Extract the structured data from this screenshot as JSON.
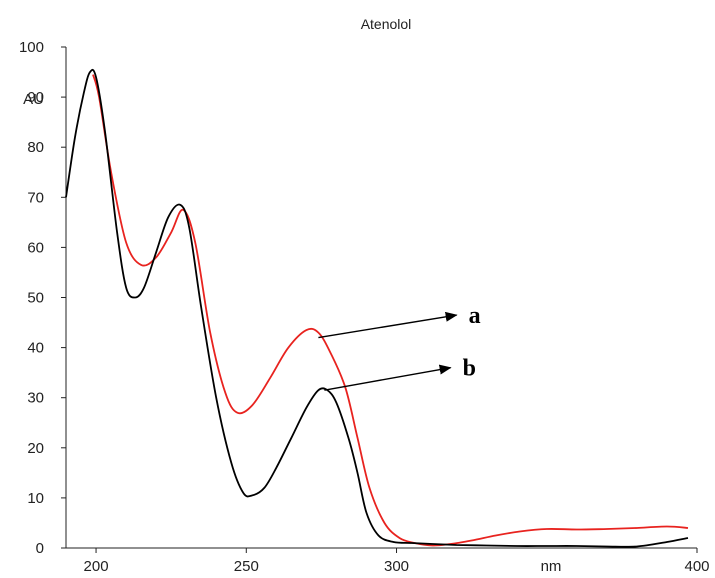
{
  "chart_data": {
    "type": "line",
    "title": "Atenolol",
    "xlabel": "nm",
    "ylabel": "AU",
    "xlim": [
      190,
      400
    ],
    "ylim": [
      0,
      100
    ],
    "x_ticks": [
      "200",
      "250",
      "300",
      "400"
    ],
    "y_ticks": [
      "0",
      "10",
      "20",
      "30",
      "40",
      "50",
      "60",
      "70",
      "80",
      "90",
      "100"
    ],
    "grid": false,
    "series": [
      {
        "name": "a",
        "color": "#e8231f",
        "x": [
          199,
          201,
          205,
          210,
          215,
          220,
          225,
          229,
          233,
          238,
          243,
          247,
          252,
          258,
          264,
          270,
          274,
          278,
          283,
          287,
          291,
          296,
          301,
          306,
          312,
          318,
          325,
          333,
          341,
          350,
          360,
          370,
          380,
          390,
          397
        ],
        "y": [
          94.5,
          90,
          75,
          61,
          56.5,
          58,
          63,
          67.5,
          61,
          43,
          31,
          27,
          28.5,
          34,
          40,
          43.5,
          43,
          39,
          32,
          22,
          12,
          5,
          2,
          1,
          0.5,
          0.8,
          1.5,
          2.5,
          3.3,
          3.8,
          3.7,
          3.8,
          4,
          4.3,
          4
        ]
      },
      {
        "name": "b",
        "color": "#000000",
        "x": [
          190,
          193,
          196,
          198,
          200,
          203,
          207,
          210,
          213,
          216,
          220,
          224,
          228,
          231,
          235,
          240,
          245,
          249,
          252,
          256,
          260,
          265,
          270,
          274,
          277,
          280,
          284,
          287,
          290,
          294,
          299,
          305,
          312,
          320,
          330,
          340,
          350,
          360,
          370,
          380,
          390,
          397
        ],
        "y": [
          70,
          82,
          91,
          95,
          94,
          83,
          63,
          52,
          50,
          52,
          59,
          66,
          68.5,
          64,
          48,
          30,
          17,
          11,
          10.5,
          12,
          16,
          22,
          28,
          31.5,
          31.5,
          29,
          22,
          15,
          7,
          2.5,
          1.2,
          1,
          0.8,
          0.6,
          0.5,
          0.4,
          0.4,
          0.4,
          0.3,
          0.3,
          1.2,
          2
        ]
      }
    ],
    "annotations": [
      {
        "label": "a",
        "arrow_from": [
          274,
          42
        ],
        "arrow_to": [
          320,
          46.5
        ]
      },
      {
        "label": "b",
        "arrow_from": [
          276,
          31.5
        ],
        "arrow_to": [
          318,
          36
        ]
      }
    ]
  }
}
